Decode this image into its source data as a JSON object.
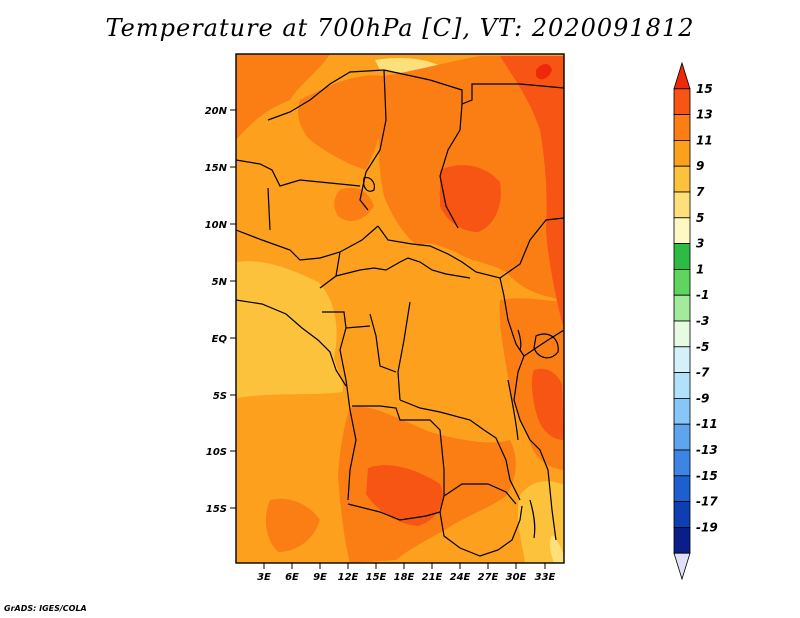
{
  "title": "Temperature at 700hPa [C], VT: 2020091812",
  "credit": "GrADS: IGES/COLA",
  "map": {
    "lat_labels": [
      "20N",
      "15N",
      "10N",
      "5N",
      "EQ",
      "5S",
      "10S",
      "15S"
    ],
    "lon_labels": [
      "3E",
      "6E",
      "9E",
      "12E",
      "15E",
      "18E",
      "21E",
      "24E",
      "27E",
      "30E",
      "33E"
    ],
    "extent": {
      "lon_min": 0,
      "lon_max": 35,
      "lat_min": -20,
      "lat_max": 24.5
    }
  },
  "colorbar": {
    "labels": [
      "15",
      "13",
      "11",
      "9",
      "7",
      "5",
      "3",
      "1",
      "-1",
      "-3",
      "-5",
      "-7",
      "-9",
      "-11",
      "-13",
      "-15",
      "-17",
      "-19"
    ],
    "colors": [
      "#f0280a",
      "#f65514",
      "#fa7e14",
      "#fca01e",
      "#fcc23c",
      "#fde07a",
      "#fff8c4",
      "#2ebb45",
      "#5fd45f",
      "#a2ea9c",
      "#e6fbe2",
      "#d3f1fb",
      "#b0e2fa",
      "#87c7f7",
      "#5fa5ee",
      "#3d84e3",
      "#1e5fcf",
      "#0d3fb3",
      "#0a1e8a",
      "#e0e0f8"
    ]
  }
}
